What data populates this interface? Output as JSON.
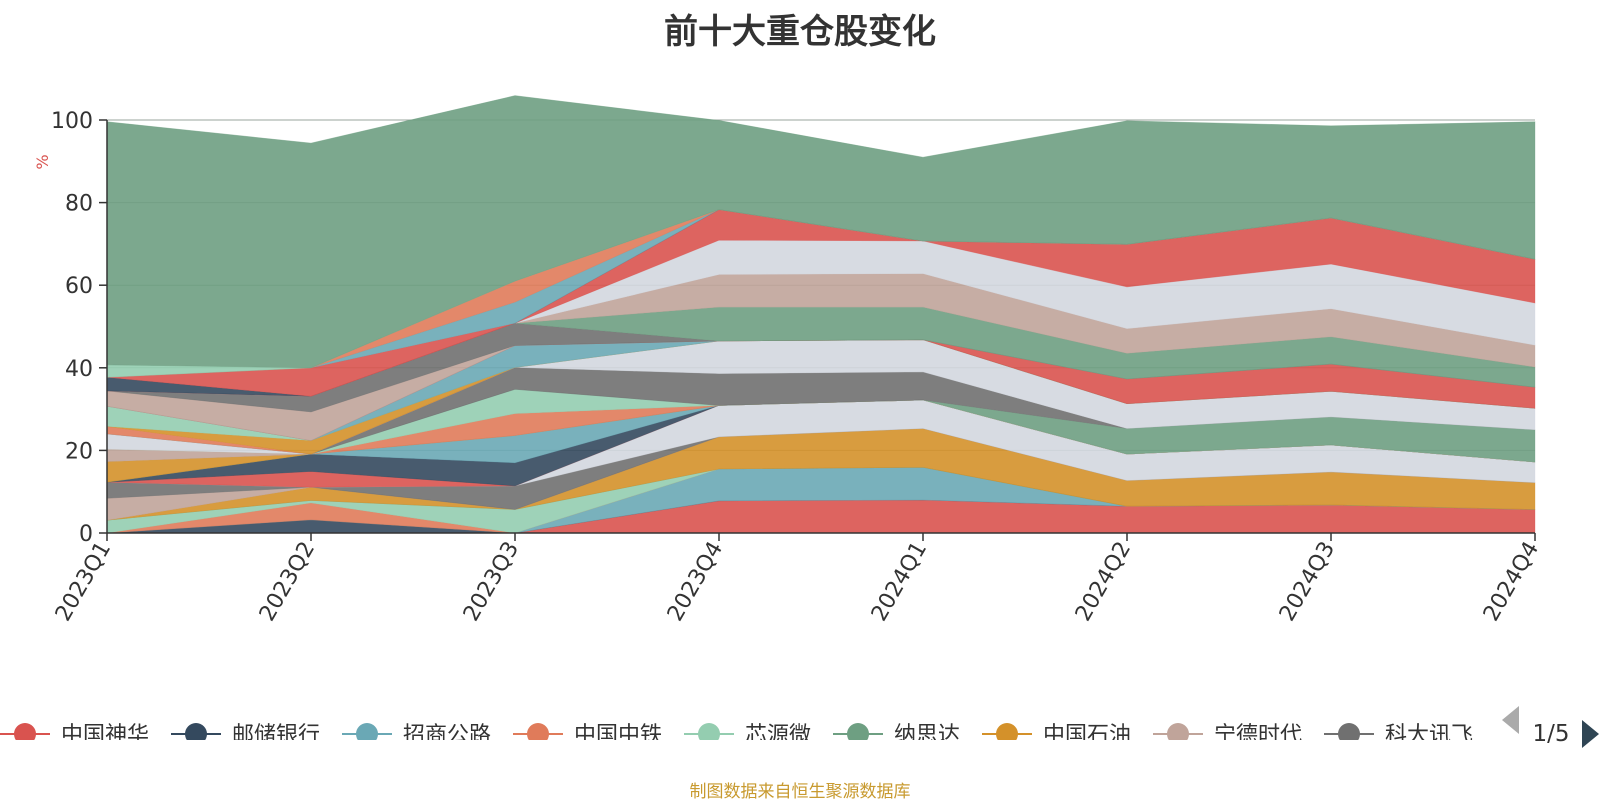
{
  "chart_data": {
    "type": "area",
    "title": "前十大重仓股变化",
    "xlabel": "",
    "ylabel": "%",
    "ylim": [
      0,
      100
    ],
    "yticks": [
      0,
      20,
      40,
      60,
      80,
      100
    ],
    "grid": true,
    "stacked": true,
    "categories": [
      "2023Q1",
      "2023Q2",
      "2023Q3",
      "2023Q4",
      "2024Q1",
      "2024Q2",
      "2024Q3",
      "2024Q4"
    ],
    "series": [
      {
        "name": "中国神华",
        "color": "#d9534f",
        "values": [
          0,
          0,
          0,
          7.8,
          8.0,
          6.5,
          6.8,
          5.7
        ]
      },
      {
        "name": "邮储银行",
        "color": "#34495e",
        "values": [
          0,
          3.2,
          0,
          0,
          0,
          0,
          0,
          0
        ]
      },
      {
        "name": "招商公路",
        "color": "#6aa8b5",
        "values": [
          0,
          0,
          0,
          7.7,
          7.9,
          0,
          0,
          0
        ]
      },
      {
        "name": "中国中铁",
        "color": "#e07b5a",
        "values": [
          0,
          4.1,
          0,
          0,
          0,
          0,
          0,
          0
        ]
      },
      {
        "name": "芯源微",
        "color": "#94cdb0",
        "values": [
          3.1,
          0.6,
          5.7,
          0,
          0,
          0,
          0,
          0
        ]
      },
      {
        "name": "纳思达",
        "color": "#6e9f82",
        "values": [
          0,
          0,
          0,
          0,
          0,
          0,
          0,
          0
        ]
      },
      {
        "name": "中国石油",
        "color": "#d4912a",
        "values": [
          0,
          3.2,
          0,
          7.8,
          9.4,
          6.2,
          8.0,
          6.5
        ]
      },
      {
        "name": "宁德时代",
        "color": "#c0a49a",
        "values": [
          5.3,
          0,
          0,
          0,
          0,
          0,
          0,
          0
        ]
      },
      {
        "name": "科大讯飞",
        "color": "#707070",
        "values": [
          3.9,
          0,
          5.7,
          0,
          0,
          0,
          0,
          0
        ]
      },
      {
        "name": "",
        "color": "#d3d7df",
        "values": [
          0,
          0,
          0,
          7.6,
          6.9,
          6.4,
          6.5,
          5.0
        ]
      },
      {
        "name": "",
        "color": "#d9534f",
        "values": [
          0,
          3.8,
          0,
          0,
          0,
          0,
          0,
          0
        ]
      },
      {
        "name": "",
        "color": "#34495e",
        "values": [
          0,
          4.2,
          5.6,
          0,
          0,
          0,
          0,
          0
        ]
      },
      {
        "name": "",
        "color": "#6aa8b5",
        "values": [
          0,
          0,
          6.6,
          0,
          0,
          0,
          0,
          0
        ]
      },
      {
        "name": "",
        "color": "#d4912a",
        "values": [
          5.0,
          0,
          0,
          0,
          0,
          0,
          0,
          0
        ]
      },
      {
        "name": "",
        "color": "#c0a49a",
        "values": [
          3.0,
          0,
          0,
          0,
          0,
          0,
          0,
          0
        ]
      },
      {
        "name": "",
        "color": "#e07b5a",
        "values": [
          0,
          0,
          5.3,
          0,
          0,
          0,
          0,
          0
        ]
      },
      {
        "name": "",
        "color": "#94cdb0",
        "values": [
          0,
          0,
          5.9,
          0,
          0,
          0,
          0,
          0
        ]
      },
      {
        "name": "",
        "color": "#d3d7df",
        "values": [
          3.7,
          0,
          0,
          0,
          0,
          0,
          0,
          0
        ]
      },
      {
        "name": "",
        "color": "#6e9f82",
        "values": [
          0,
          0,
          0,
          0,
          0,
          6.2,
          6.8,
          7.8
        ]
      },
      {
        "name": "",
        "color": "#707070",
        "values": [
          0,
          0,
          5.3,
          7.7,
          6.8,
          0,
          0,
          0
        ]
      },
      {
        "name": "",
        "color": "#d3d7df",
        "values": [
          0,
          0,
          0,
          7.9,
          7.8,
          6.0,
          6.2,
          5.2
        ]
      },
      {
        "name": "",
        "color": "#e07b5a",
        "values": [
          1.8,
          0,
          0,
          0,
          0,
          0,
          0,
          0
        ]
      },
      {
        "name": "",
        "color": "#d4912a",
        "values": [
          0,
          3.3,
          0,
          0,
          0,
          0,
          0,
          0
        ]
      },
      {
        "name": "",
        "color": "#94cdb0",
        "values": [
          4.9,
          0,
          0,
          0,
          0,
          0,
          0,
          0
        ]
      },
      {
        "name": "",
        "color": "#6aa8b5",
        "values": [
          0,
          0,
          5.3,
          0,
          0,
          0,
          0,
          0
        ]
      },
      {
        "name": "",
        "color": "#d9534f",
        "values": [
          0,
          0,
          0,
          0,
          0,
          6.0,
          6.6,
          5.1
        ]
      },
      {
        "name": "",
        "color": "#c0a49a",
        "values": [
          3.7,
          6.9,
          0,
          0,
          0,
          0,
          0,
          0
        ]
      },
      {
        "name": "",
        "color": "#707070",
        "values": [
          0,
          3.8,
          5.4,
          0,
          0,
          0,
          0,
          0
        ]
      },
      {
        "name": "",
        "color": "#6e9f82",
        "values": [
          0,
          0,
          0,
          8.2,
          7.9,
          6.2,
          6.6,
          4.9
        ]
      },
      {
        "name": "",
        "color": "#c0a49a",
        "values": [
          0,
          0,
          0,
          7.9,
          8.1,
          6.0,
          6.8,
          5.3
        ]
      },
      {
        "name": "",
        "color": "#d3d7df",
        "values": [
          0,
          0,
          0,
          8.3,
          7.9,
          10.1,
          10.8,
          10.2
        ]
      },
      {
        "name": "",
        "color": "#d9534f",
        "values": [
          0,
          0,
          0,
          7.4,
          0,
          10.3,
          11.2,
          10.6
        ]
      },
      {
        "name": "",
        "color": "#34495e",
        "values": [
          3.3,
          0,
          0,
          0,
          0,
          0,
          0,
          0
        ]
      },
      {
        "name": "",
        "color": "#d9534f",
        "values": [
          0,
          6.9,
          0,
          0,
          0,
          0,
          0,
          0
        ]
      },
      {
        "name": "",
        "color": "#6aa8b5",
        "values": [
          0,
          0,
          5.1,
          0,
          0,
          0,
          0,
          0
        ]
      },
      {
        "name": "",
        "color": "#e07b5a",
        "values": [
          0,
          0,
          5.1,
          0,
          0,
          0,
          0,
          0
        ]
      },
      {
        "name": "",
        "color": "#94cdb0",
        "values": [
          3.0,
          0,
          0,
          0,
          0,
          0,
          0,
          0
        ]
      },
      {
        "name": "",
        "color": "#6e9f82",
        "values": [
          58.9,
          54.4,
          44.9,
          21.6,
          20.3,
          29.9,
          22.3,
          33.3
        ]
      }
    ]
  },
  "legend": {
    "page": "1/5"
  },
  "source_note": "制图数据来自恒生聚源数据库"
}
